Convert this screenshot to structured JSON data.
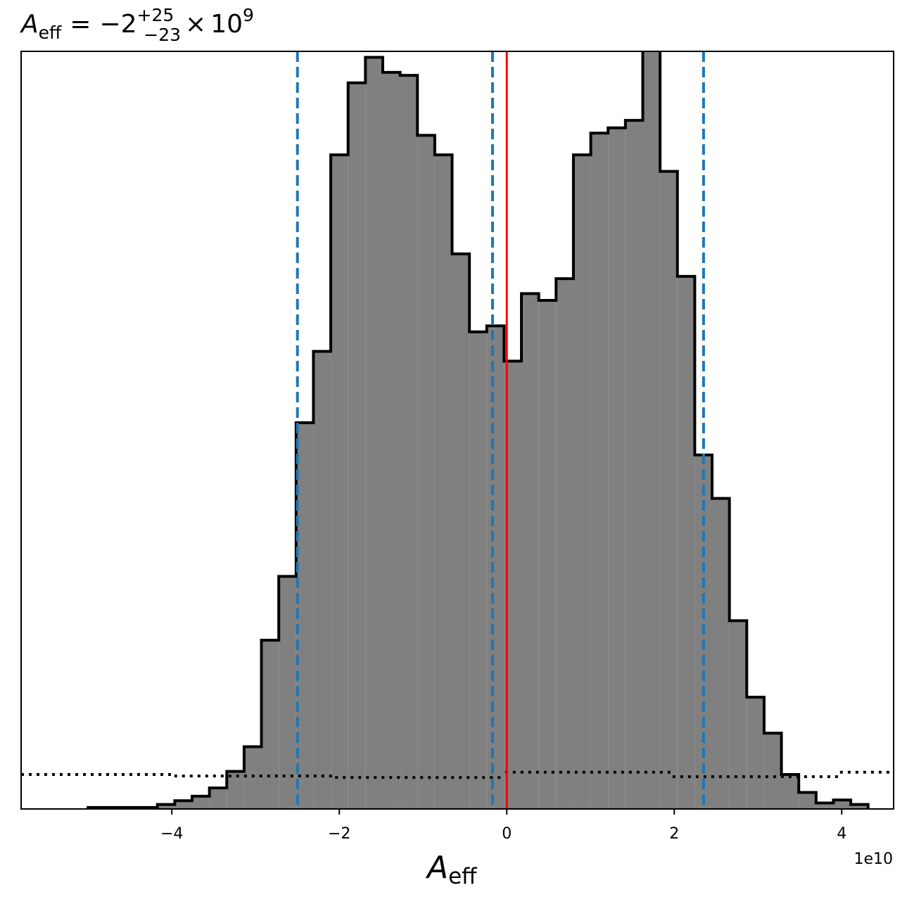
{
  "chart_data": {
    "type": "histogram",
    "title": {
      "var_main": "A",
      "var_sub": "eff",
      "equals": "=",
      "value": "−2",
      "sup": "+25",
      "sub": "−23",
      "times": "×",
      "base": "10",
      "exp": "9"
    },
    "xlabel": {
      "main": "A",
      "sub": "eff"
    },
    "x_offset_label": "1e10",
    "x_ticks": [
      -4,
      -2,
      0,
      2,
      4
    ],
    "x_tick_labels": [
      "−4",
      "−2",
      "0",
      "2",
      "4"
    ],
    "xlim": [
      -5.8,
      4.62
    ],
    "ylim": [
      0,
      1.01
    ],
    "grid": false,
    "bin_edges": [
      -5.0,
      -4.793,
      -4.586,
      -4.379,
      -4.172,
      -3.965,
      -3.758,
      -3.551,
      -3.344,
      -3.137,
      -2.93,
      -2.723,
      -2.516,
      -2.309,
      -2.102,
      -1.895,
      -1.688,
      -1.481,
      -1.274,
      -1.067,
      -0.86,
      -0.653,
      -0.446,
      -0.239,
      -0.032,
      0.175,
      0.382,
      0.589,
      0.796,
      1.003,
      1.21,
      1.417,
      1.624,
      1.831,
      2.038,
      2.245,
      2.452,
      2.659,
      2.866,
      3.073,
      3.28,
      3.487,
      3.694,
      3.901,
      4.108,
      4.315
    ],
    "counts": [
      0.002,
      0.002,
      0.002,
      0.002,
      0.006,
      0.011,
      0.017,
      0.028,
      0.05,
      0.083,
      0.225,
      0.31,
      0.515,
      0.61,
      0.872,
      0.968,
      1.002,
      0.982,
      0.978,
      0.898,
      0.872,
      0.74,
      0.636,
      0.644,
      0.597,
      0.687,
      0.678,
      0.707,
      0.872,
      0.901,
      0.908,
      0.918,
      1.012,
      0.85,
      0.71,
      0.472,
      0.414,
      0.251,
      0.149,
      0.101,
      0.046,
      0.022,
      0.008,
      0.012,
      0.006
    ],
    "fill_color": "#808080",
    "edge_color": "#000000",
    "dashed_lines": {
      "x": [
        -2.5,
        -0.17,
        2.35
      ],
      "color": "#1f77b4"
    },
    "red_line": {
      "x": 0.0,
      "color": "#ff0000"
    },
    "prior": {
      "segments": [
        {
          "x0": -5.8,
          "x1": -3.97,
          "y": 0.046
        },
        {
          "x0": -3.97,
          "x1": -2.05,
          "y": 0.044
        },
        {
          "x0": -2.05,
          "x1": -0.02,
          "y": 0.042
        },
        {
          "x0": -0.02,
          "x1": 1.98,
          "y": 0.049
        },
        {
          "x0": 1.98,
          "x1": 3.98,
          "y": 0.043
        },
        {
          "x0": 3.98,
          "x1": 4.62,
          "y": 0.049
        }
      ],
      "color": "#000000",
      "style": "dotted"
    }
  }
}
